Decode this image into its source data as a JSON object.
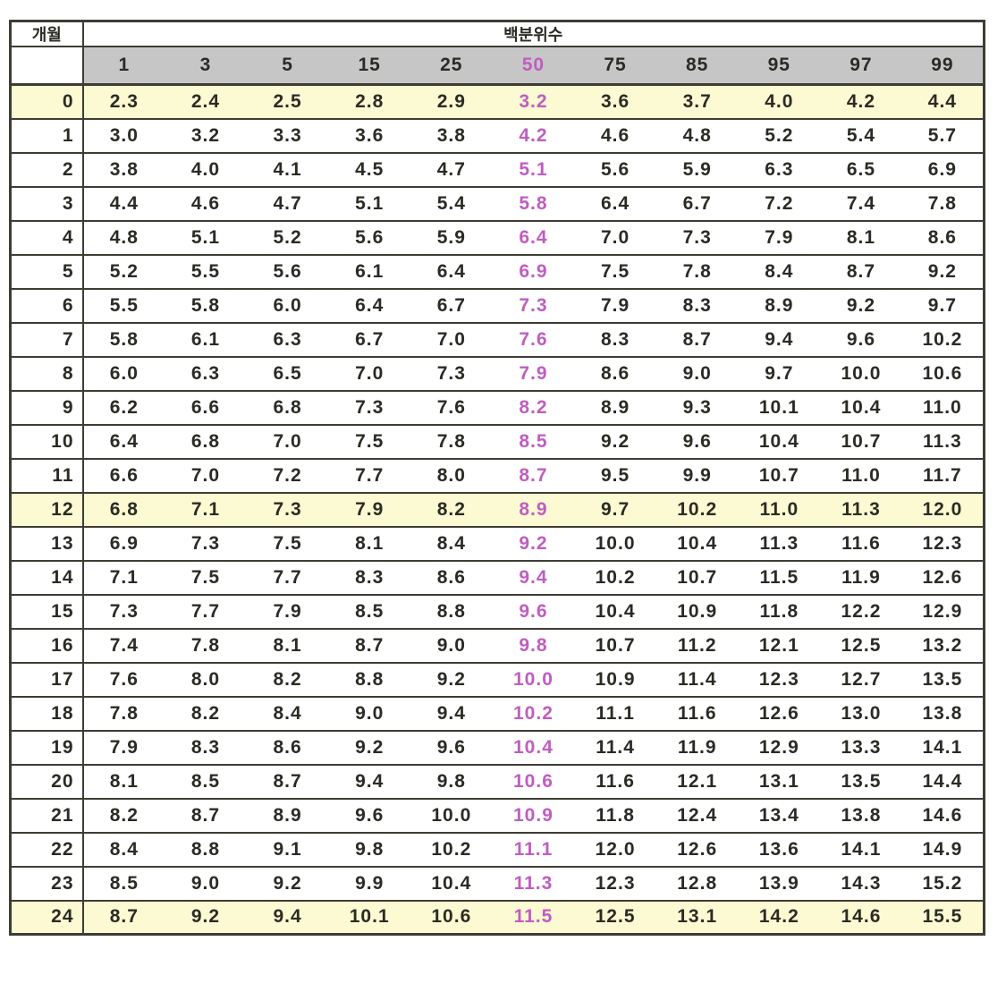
{
  "colors": {
    "header_bg": "#c6c6c6",
    "highlight_bg": "#fcfad2",
    "accent": "#c15cc1",
    "ink": "#2b2b25",
    "line": "#3d3d34"
  },
  "chart_data": {
    "type": "table",
    "title": "백분위수",
    "corner_label": "개월",
    "columns": [
      "1",
      "3",
      "5",
      "15",
      "25",
      "50",
      "75",
      "85",
      "95",
      "97",
      "99"
    ],
    "accent_column": "50",
    "highlighted_rows": [
      "0",
      "12",
      "24"
    ],
    "rows": [
      {
        "month": "0",
        "values": [
          "2.3",
          "2.4",
          "2.5",
          "2.8",
          "2.9",
          "3.2",
          "3.6",
          "3.7",
          "4.0",
          "4.2",
          "4.4"
        ]
      },
      {
        "month": "1",
        "values": [
          "3.0",
          "3.2",
          "3.3",
          "3.6",
          "3.8",
          "4.2",
          "4.6",
          "4.8",
          "5.2",
          "5.4",
          "5.7"
        ]
      },
      {
        "month": "2",
        "values": [
          "3.8",
          "4.0",
          "4.1",
          "4.5",
          "4.7",
          "5.1",
          "5.6",
          "5.9",
          "6.3",
          "6.5",
          "6.9"
        ]
      },
      {
        "month": "3",
        "values": [
          "4.4",
          "4.6",
          "4.7",
          "5.1",
          "5.4",
          "5.8",
          "6.4",
          "6.7",
          "7.2",
          "7.4",
          "7.8"
        ]
      },
      {
        "month": "4",
        "values": [
          "4.8",
          "5.1",
          "5.2",
          "5.6",
          "5.9",
          "6.4",
          "7.0",
          "7.3",
          "7.9",
          "8.1",
          "8.6"
        ]
      },
      {
        "month": "5",
        "values": [
          "5.2",
          "5.5",
          "5.6",
          "6.1",
          "6.4",
          "6.9",
          "7.5",
          "7.8",
          "8.4",
          "8.7",
          "9.2"
        ]
      },
      {
        "month": "6",
        "values": [
          "5.5",
          "5.8",
          "6.0",
          "6.4",
          "6.7",
          "7.3",
          "7.9",
          "8.3",
          "8.9",
          "9.2",
          "9.7"
        ]
      },
      {
        "month": "7",
        "values": [
          "5.8",
          "6.1",
          "6.3",
          "6.7",
          "7.0",
          "7.6",
          "8.3",
          "8.7",
          "9.4",
          "9.6",
          "10.2"
        ]
      },
      {
        "month": "8",
        "values": [
          "6.0",
          "6.3",
          "6.5",
          "7.0",
          "7.3",
          "7.9",
          "8.6",
          "9.0",
          "9.7",
          "10.0",
          "10.6"
        ]
      },
      {
        "month": "9",
        "values": [
          "6.2",
          "6.6",
          "6.8",
          "7.3",
          "7.6",
          "8.2",
          "8.9",
          "9.3",
          "10.1",
          "10.4",
          "11.0"
        ]
      },
      {
        "month": "10",
        "values": [
          "6.4",
          "6.8",
          "7.0",
          "7.5",
          "7.8",
          "8.5",
          "9.2",
          "9.6",
          "10.4",
          "10.7",
          "11.3"
        ]
      },
      {
        "month": "11",
        "values": [
          "6.6",
          "7.0",
          "7.2",
          "7.7",
          "8.0",
          "8.7",
          "9.5",
          "9.9",
          "10.7",
          "11.0",
          "11.7"
        ]
      },
      {
        "month": "12",
        "values": [
          "6.8",
          "7.1",
          "7.3",
          "7.9",
          "8.2",
          "8.9",
          "9.7",
          "10.2",
          "11.0",
          "11.3",
          "12.0"
        ]
      },
      {
        "month": "13",
        "values": [
          "6.9",
          "7.3",
          "7.5",
          "8.1",
          "8.4",
          "9.2",
          "10.0",
          "10.4",
          "11.3",
          "11.6",
          "12.3"
        ]
      },
      {
        "month": "14",
        "values": [
          "7.1",
          "7.5",
          "7.7",
          "8.3",
          "8.6",
          "9.4",
          "10.2",
          "10.7",
          "11.5",
          "11.9",
          "12.6"
        ]
      },
      {
        "month": "15",
        "values": [
          "7.3",
          "7.7",
          "7.9",
          "8.5",
          "8.8",
          "9.6",
          "10.4",
          "10.9",
          "11.8",
          "12.2",
          "12.9"
        ]
      },
      {
        "month": "16",
        "values": [
          "7.4",
          "7.8",
          "8.1",
          "8.7",
          "9.0",
          "9.8",
          "10.7",
          "11.2",
          "12.1",
          "12.5",
          "13.2"
        ]
      },
      {
        "month": "17",
        "values": [
          "7.6",
          "8.0",
          "8.2",
          "8.8",
          "9.2",
          "10.0",
          "10.9",
          "11.4",
          "12.3",
          "12.7",
          "13.5"
        ]
      },
      {
        "month": "18",
        "values": [
          "7.8",
          "8.2",
          "8.4",
          "9.0",
          "9.4",
          "10.2",
          "11.1",
          "11.6",
          "12.6",
          "13.0",
          "13.8"
        ]
      },
      {
        "month": "19",
        "values": [
          "7.9",
          "8.3",
          "8.6",
          "9.2",
          "9.6",
          "10.4",
          "11.4",
          "11.9",
          "12.9",
          "13.3",
          "14.1"
        ]
      },
      {
        "month": "20",
        "values": [
          "8.1",
          "8.5",
          "8.7",
          "9.4",
          "9.8",
          "10.6",
          "11.6",
          "12.1",
          "13.1",
          "13.5",
          "14.4"
        ]
      },
      {
        "month": "21",
        "values": [
          "8.2",
          "8.7",
          "8.9",
          "9.6",
          "10.0",
          "10.9",
          "11.8",
          "12.4",
          "13.4",
          "13.8",
          "14.6"
        ]
      },
      {
        "month": "22",
        "values": [
          "8.4",
          "8.8",
          "9.1",
          "9.8",
          "10.2",
          "11.1",
          "12.0",
          "12.6",
          "13.6",
          "14.1",
          "14.9"
        ]
      },
      {
        "month": "23",
        "values": [
          "8.5",
          "9.0",
          "9.2",
          "9.9",
          "10.4",
          "11.3",
          "12.3",
          "12.8",
          "13.9",
          "14.3",
          "15.2"
        ]
      },
      {
        "month": "24",
        "values": [
          "8.7",
          "9.2",
          "9.4",
          "10.1",
          "10.6",
          "11.5",
          "12.5",
          "13.1",
          "14.2",
          "14.6",
          "15.5"
        ]
      }
    ]
  }
}
